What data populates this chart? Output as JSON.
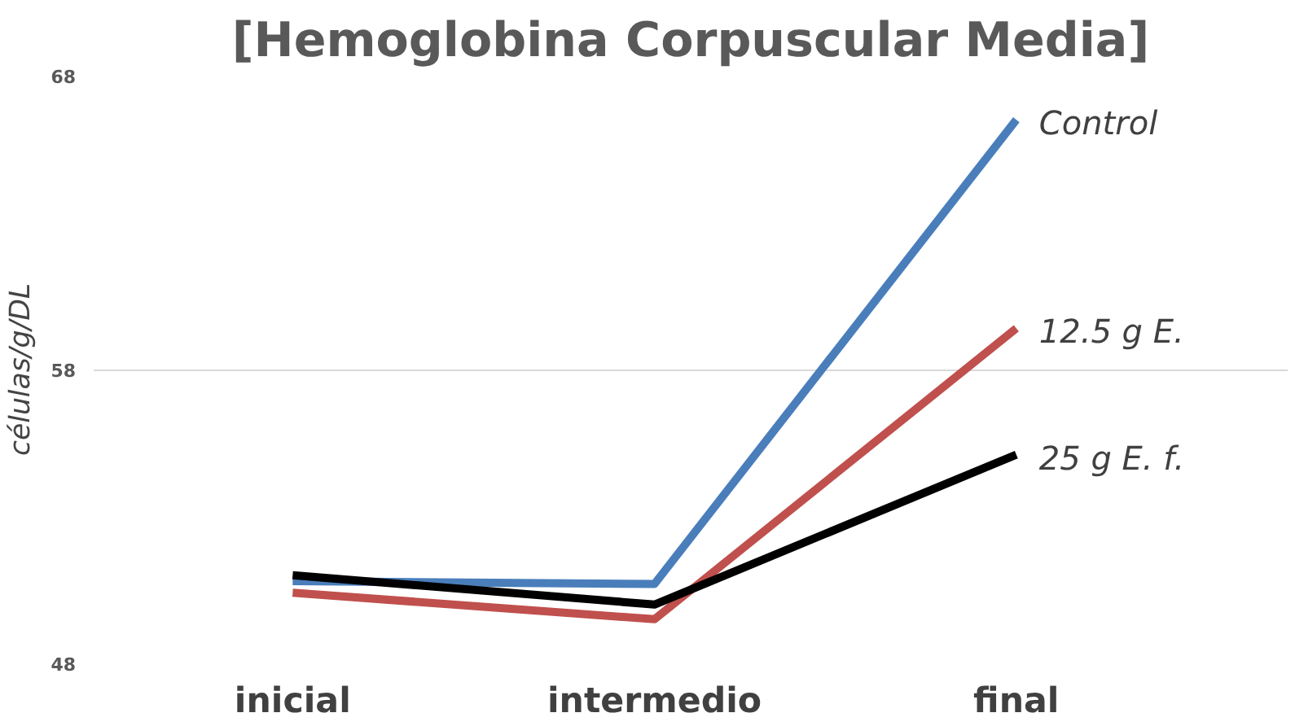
{
  "chart_data": {
    "type": "line",
    "title": "[Hemoglobina Corpuscular Media]",
    "ylabel": "células/g/DL",
    "categories": [
      "inicial",
      "intermedio",
      "final"
    ],
    "series": [
      {
        "name": "Control",
        "color": "#4a7ebb",
        "values": [
          50.8,
          50.7,
          66.5
        ]
      },
      {
        "name": "12.5 g E.",
        "color": "#c0504d",
        "values": [
          50.4,
          49.5,
          59.4
        ]
      },
      {
        "name": "25 g E. f.",
        "color": "#000000",
        "values": [
          51.0,
          50.0,
          55.1
        ]
      }
    ],
    "ylim": [
      48,
      68
    ],
    "yticks": [
      48,
      58,
      68
    ],
    "grid": "y",
    "legend": false,
    "marker": "none",
    "line_style": "solid"
  }
}
